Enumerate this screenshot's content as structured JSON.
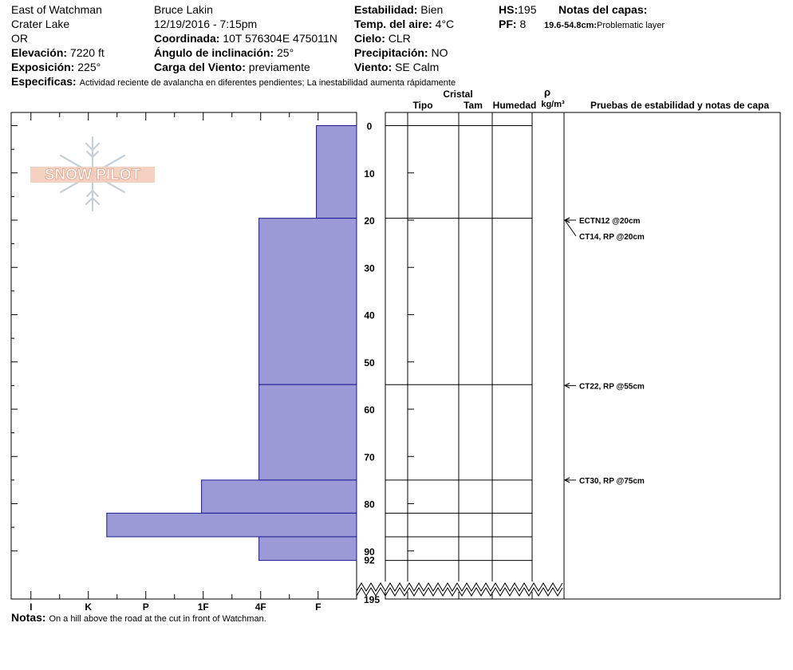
{
  "header": {
    "location": "East of Watchman",
    "area": "Crater Lake",
    "state": "OR",
    "elevation_label": "Elevación:",
    "elevation_value": "7220 ft",
    "aspect_label": "Exposición:",
    "aspect_value": "225°",
    "observer": "Bruce Lakin",
    "datetime": "12/19/2016 - 7:15pm",
    "coord_label": "Coordinada:",
    "coord_value": "10T 576304E 475011N",
    "slope_label": "Ángulo de inclinación:",
    "slope_value": "25°",
    "wind_load_label": "Carga del Viento:",
    "wind_load_value": "previamente",
    "stability_label": "Estabilidad:",
    "stability_value": "Bien",
    "air_temp_label": "Temp. del aire:",
    "air_temp_value": "4°C",
    "sky_label": "Cielo:",
    "sky_value": "CLR",
    "precip_label": "Precipitación:",
    "precip_value": "NO",
    "wind_label": "Viento:",
    "wind_value": "SE Calm",
    "hs_label": "HS:",
    "hs_value": "195",
    "pf_label": "PF:",
    "pf_value": "8",
    "layer_notes_label": "Notas del capas:",
    "layer_note_range": "19.6-54.8cm:",
    "layer_note_text": "Problematic layer",
    "specifics_label": "Especificas:",
    "specifics_value": "Actividad reciente de avalancha en diferentes pendientes;  La inestabilidad aumenta rápidamente"
  },
  "footer": {
    "notes_label": "Notas:",
    "notes_value": "On a hill above the road at the cut in front of Watchman."
  },
  "logo_text": "SNOW PILOT",
  "columns": {
    "crystal": "Cristal",
    "type": "Tipo",
    "size": "Tam",
    "moisture": "Humedad",
    "density_symbol": "ρ",
    "density_unit": "kg/m³",
    "tests": "Pruebas de estabilidad y notas de capa"
  },
  "colors": {
    "hardness_fill": "#9b99d6",
    "hardness_stroke": "#1a1a8c"
  },
  "chart_data": {
    "type": "bar",
    "orientation": "horizontal",
    "hardness_scale": [
      "I",
      "K",
      "P",
      "1F",
      "4F",
      "F"
    ],
    "depth_ticks": [
      0,
      10,
      20,
      30,
      40,
      50,
      60,
      70,
      80,
      90
    ],
    "total_depth_label": "92",
    "hs_break_label": "195",
    "layers": [
      {
        "top": 0,
        "bottom": 19.6,
        "hardness": "F"
      },
      {
        "top": 19.6,
        "bottom": 54.8,
        "hardness": "4F"
      },
      {
        "top": 54.8,
        "bottom": 75,
        "hardness": "4F"
      },
      {
        "top": 75,
        "bottom": 82,
        "hardness": "1F"
      },
      {
        "top": 82,
        "bottom": 87,
        "hardness": "P+"
      },
      {
        "top": 87,
        "bottom": 92,
        "hardness": "4F"
      }
    ],
    "hardness_values": [
      0.7,
      1.7,
      1.7,
      2.7,
      4.35,
      1.7
    ],
    "layer_boundaries": [
      0,
      19.6,
      54.8,
      75,
      82,
      87,
      92
    ],
    "tests": [
      {
        "text": "ECTN12 @20cm",
        "depth": 20
      },
      {
        "text": "CT14, RP @20cm",
        "depth": 20
      },
      {
        "text": "CT22, RP @55cm",
        "depth": 55
      },
      {
        "text": "CT30, RP @75cm",
        "depth": 75
      }
    ]
  }
}
